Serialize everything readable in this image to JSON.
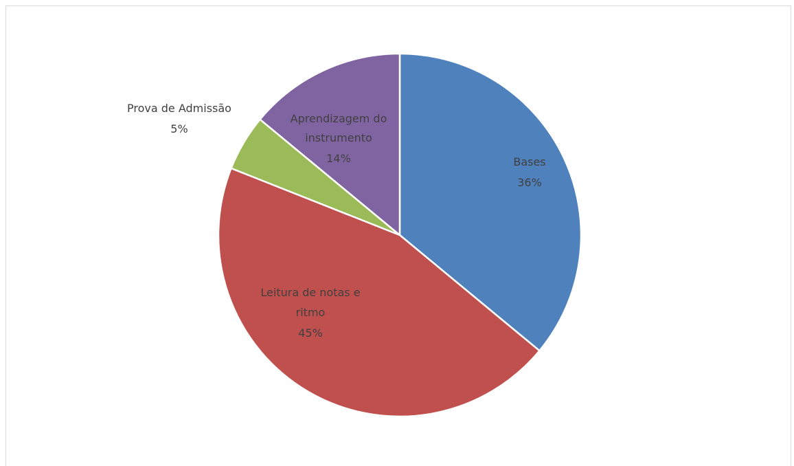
{
  "chart_data": {
    "type": "pie",
    "slices": [
      {
        "label": "Bases",
        "percent_label": "36%",
        "value": 36,
        "color": "#4f81bd"
      },
      {
        "label": "Leitura de notas e ritmo",
        "percent_label": "45%",
        "value": 45,
        "color": "#c0504d"
      },
      {
        "label": "Prova de Admissão",
        "percent_label": "5%",
        "value": 5,
        "color": "#9bbb59"
      },
      {
        "label": "Aprendizagem do instrumento",
        "percent_label": "14%",
        "value": 14,
        "color": "#8064a2"
      }
    ],
    "start_angle": "12 o'clock",
    "direction": "clockwise",
    "legend": "none",
    "title": ""
  }
}
